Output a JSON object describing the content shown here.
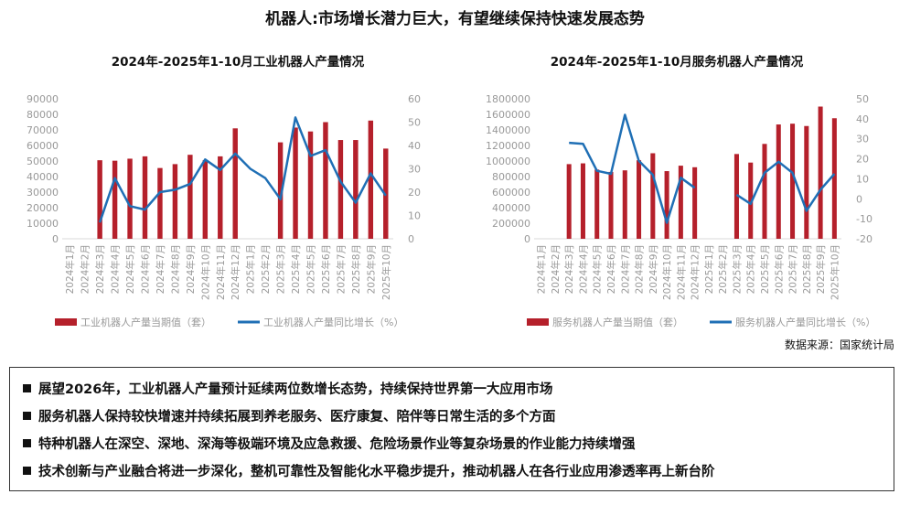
{
  "title": "机器人:市场增长潜力巨大，有望继续保持快速发展态势",
  "source": "数据来源：国家统计局",
  "colors": {
    "bar": "#b5202b",
    "line": "#1f6fb5",
    "axis_text": "#999999",
    "grid": "#d9d9d9"
  },
  "bullets": [
    "展望2026年，工业机器人产量预计延续两位数增长态势，持续保持世界第一大应用市场",
    "服务机器人保持较快增速并持续拓展到养老服务、医疗康复、陪伴等日常生活的多个方面",
    "特种机器人在深空、深地、深海等极端环境及应急救援、危险场景作业等复杂场景的作业能力持续增强",
    "技术创新与产业融合将进一步深化，整机可靠性及智能化水平稳步提升，推动机器人在各行业应用渗透率再上新台阶"
  ],
  "chart_data": [
    {
      "type": "bar+line",
      "title": "2024年-2025年1-10月工业机器人产量情况",
      "categories": [
        "2024年1月",
        "2024年2月",
        "2024年3月",
        "2024年4月",
        "2024年5月",
        "2024年6月",
        "2024年7月",
        "2024年8月",
        "2024年9月",
        "2024年10月",
        "2024年11月",
        "2024年12月",
        "2025年1月",
        "2025年2月",
        "2025年3月",
        "2025年4月",
        "2025年5月",
        "2025年6月",
        "2025年7月",
        "2025年8月",
        "2025年9月",
        "2025年10月"
      ],
      "series": [
        {
          "name": "工业机器人产量当期值（套）",
          "kind": "bar",
          "axis": "left",
          "values": [
            null,
            null,
            50500,
            50200,
            51500,
            53000,
            45500,
            48000,
            54000,
            50500,
            53000,
            71000,
            null,
            null,
            62000,
            71500,
            69000,
            75000,
            63500,
            63500,
            76000,
            58000
          ]
        },
        {
          "name": "工业机器人产量同比增长（%）",
          "kind": "line",
          "axis": "right",
          "values": [
            null,
            null,
            7,
            26,
            14,
            12.5,
            20,
            21,
            23.5,
            34,
            29.5,
            36.5,
            30,
            26,
            17,
            52,
            35.5,
            38,
            24.5,
            15.5,
            28,
            18.5
          ]
        }
      ],
      "y_left": {
        "min": 0,
        "max": 90000,
        "ticks": [
          0,
          10000,
          20000,
          30000,
          40000,
          50000,
          60000,
          70000,
          80000,
          90000
        ]
      },
      "y_right": {
        "min": 0,
        "max": 60,
        "ticks": [
          0,
          10,
          20,
          30,
          40,
          50,
          60
        ]
      },
      "legend": "bottom"
    },
    {
      "type": "bar+line",
      "title": "2024年-2025年1-10月服务机器人产量情况",
      "categories": [
        "2024年1月",
        "2024年2月",
        "2024年3月",
        "2024年4月",
        "2024年5月",
        "2024年6月",
        "2024年7月",
        "2024年8月",
        "2024年9月",
        "2024年10月",
        "2024年11月",
        "2024年12月",
        "2025年1月",
        "2025年2月",
        "2025年3月",
        "2025年4月",
        "2025年5月",
        "2025年6月",
        "2025年7月",
        "2025年8月",
        "2025年9月",
        "2025年10月"
      ],
      "series": [
        {
          "name": "服务机器人产量当期值（套）",
          "kind": "bar",
          "axis": "left",
          "values": [
            null,
            null,
            960000,
            970000,
            890000,
            860000,
            880000,
            1010000,
            1100000,
            870000,
            940000,
            920000,
            null,
            null,
            1090000,
            980000,
            1220000,
            1470000,
            1480000,
            1450000,
            1700000,
            1550000
          ]
        },
        {
          "name": "服务机器人产量同比增长（%）",
          "kind": "line",
          "axis": "right",
          "values": [
            null,
            null,
            28,
            27.5,
            14,
            12.5,
            42,
            19,
            12,
            -12,
            10.5,
            5.5,
            null,
            null,
            2,
            -2.5,
            13,
            18.5,
            13,
            -6,
            4.5,
            12.5
          ]
        }
      ],
      "y_left": {
        "min": 0,
        "max": 1800000,
        "ticks": [
          0,
          200000,
          400000,
          600000,
          800000,
          1000000,
          1200000,
          1400000,
          1600000,
          1800000
        ]
      },
      "y_right": {
        "min": -20,
        "max": 50,
        "ticks": [
          -20,
          -10,
          0,
          10,
          20,
          30,
          40,
          50
        ]
      },
      "legend": "bottom"
    }
  ]
}
